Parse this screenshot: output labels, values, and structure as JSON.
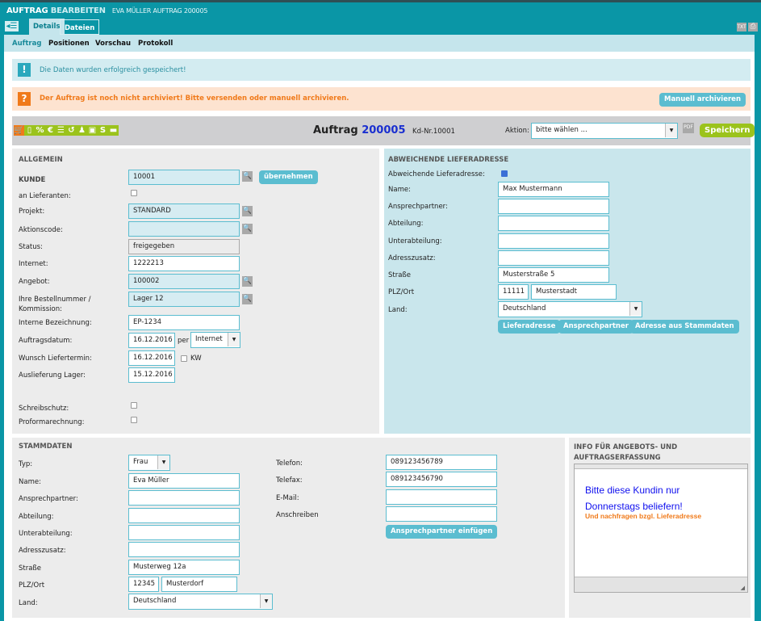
{
  "header": {
    "title_1": "AUFTRAG",
    "title_2": "BEARBEITEN",
    "subtitle": "EVA MÜLLER AUFTRAG 200005",
    "tabs": [
      "Details",
      "Dateien"
    ],
    "icons": [
      "txt-export-icon",
      "print-icon"
    ],
    "txt": "TXT"
  },
  "subnav": [
    "Auftrag",
    "Positionen",
    "Vorschau",
    "Protokoll"
  ],
  "messages": {
    "success": "Die Daten wurden erfolgreich gespeichert!",
    "warning": "Der Auftrag ist noch nicht archiviert! Bitte versenden oder manuell archivieren.",
    "archive_button": "Manuell archivieren"
  },
  "toolbar": {
    "icons": [
      "cart-icon",
      "mobile-icon",
      "percent-icon",
      "euro-icon",
      "list-icon",
      "undo-icon",
      "person-icon",
      "calendar-icon",
      "s-icon",
      "truck-icon"
    ],
    "icon_glyphs": [
      "🛒",
      "▯",
      "%",
      "€",
      "☰",
      "↺",
      "♟",
      "▣",
      "S",
      "▬"
    ],
    "title": "Auftrag",
    "number": "200005",
    "customer_no": "Kd-Nr.10001",
    "action_label": "Aktion:",
    "action_value": "bitte wählen ...",
    "pdf": "PDF",
    "save": "Speichern",
    "accent": "#9bc31c"
  },
  "allgemein": {
    "heading": "ALLGEMEIN",
    "kunde_label": "KUNDE",
    "kunde": "10001",
    "uebernehmen": "übernehmen",
    "an_lieferanten": "an Lieferanten:",
    "projekt_label": "Projekt:",
    "projekt": "STANDARD",
    "aktionscode_label": "Aktionscode:",
    "aktionscode": "",
    "status_label": "Status:",
    "status": "freigegeben",
    "internet_label": "Internet:",
    "internet": "1222213",
    "angebot_label": "Angebot:",
    "angebot": "100002",
    "bestell_label_1": "Ihre Bestellnummer /",
    "bestell_label_2": "Kommission:",
    "bestell": "Lager 12",
    "interne_label": "Interne Bezeichnung:",
    "interne": "EP-1234",
    "auftragsdatum_label": "Auftragsdatum:",
    "auftragsdatum": "16.12.2016",
    "per": "per",
    "per_value": "Internet",
    "wunsch_label": "Wunsch Liefertermin:",
    "wunsch": "16.12.2016",
    "kw": "KW",
    "auslieferung_label": "Auslieferung Lager:",
    "auslieferung": "15.12.2016",
    "schreibschutz": "Schreibschutz:",
    "proforma": "Proformarechnung:"
  },
  "lieferadresse": {
    "heading": "ABWEICHENDE LIEFERADRESSE",
    "toggle_label": "Abweichende Lieferadresse:",
    "toggle_checked": true,
    "fields": [
      {
        "label": "Name:",
        "value": "Max Mustermann"
      },
      {
        "label": "Ansprechpartner:",
        "value": ""
      },
      {
        "label": "Abteilung:",
        "value": ""
      },
      {
        "label": "Unterabteilung:",
        "value": ""
      },
      {
        "label": "Adresszusatz:",
        "value": ""
      },
      {
        "label": "Straße",
        "value": "Musterstraße 5"
      }
    ],
    "plz_label": "PLZ/Ort",
    "plz": "11111",
    "ort": "Musterstadt",
    "land_label": "Land:",
    "land": "Deutschland",
    "buttons": [
      "Lieferadresse",
      "Ansprechpartner",
      "Adresse aus Stammdaten"
    ]
  },
  "stammdaten": {
    "heading": "STAMMDATEN",
    "typ_label": "Typ:",
    "typ": "Frau",
    "fields": [
      {
        "label": "Name:",
        "value": "Eva Müller"
      },
      {
        "label": "Ansprechpartner:",
        "value": ""
      },
      {
        "label": "Abteilung:",
        "value": ""
      },
      {
        "label": "Unterabteilung:",
        "value": ""
      },
      {
        "label": "Adresszusatz:",
        "value": ""
      },
      {
        "label": "Straße",
        "value": "Musterweg 12a"
      }
    ],
    "plz_label": "PLZ/Ort",
    "plz": "12345",
    "ort": "Musterdorf",
    "land_label": "Land:",
    "land": "Deutschland",
    "right": [
      {
        "label": "Telefon:",
        "value": "089123456789"
      },
      {
        "label": "Telefax:",
        "value": "089123456790"
      },
      {
        "label": "E-Mail:",
        "value": ""
      },
      {
        "label": "Anschreiben",
        "value": ""
      }
    ],
    "add_contact": "Ansprechpartner einfügen"
  },
  "info": {
    "heading_1": "INFO FÜR ANGEBOTS- UND",
    "heading_2": "AUFTRAGSERFASSUNG",
    "line1": "Bitte diese Kundin nur",
    "line2": "Donnerstags beliefern!",
    "line3": "Und nachfragen bzgl. Lieferadresse",
    "color_blue": "#1010ee",
    "color_orange": "#f07a1a"
  }
}
